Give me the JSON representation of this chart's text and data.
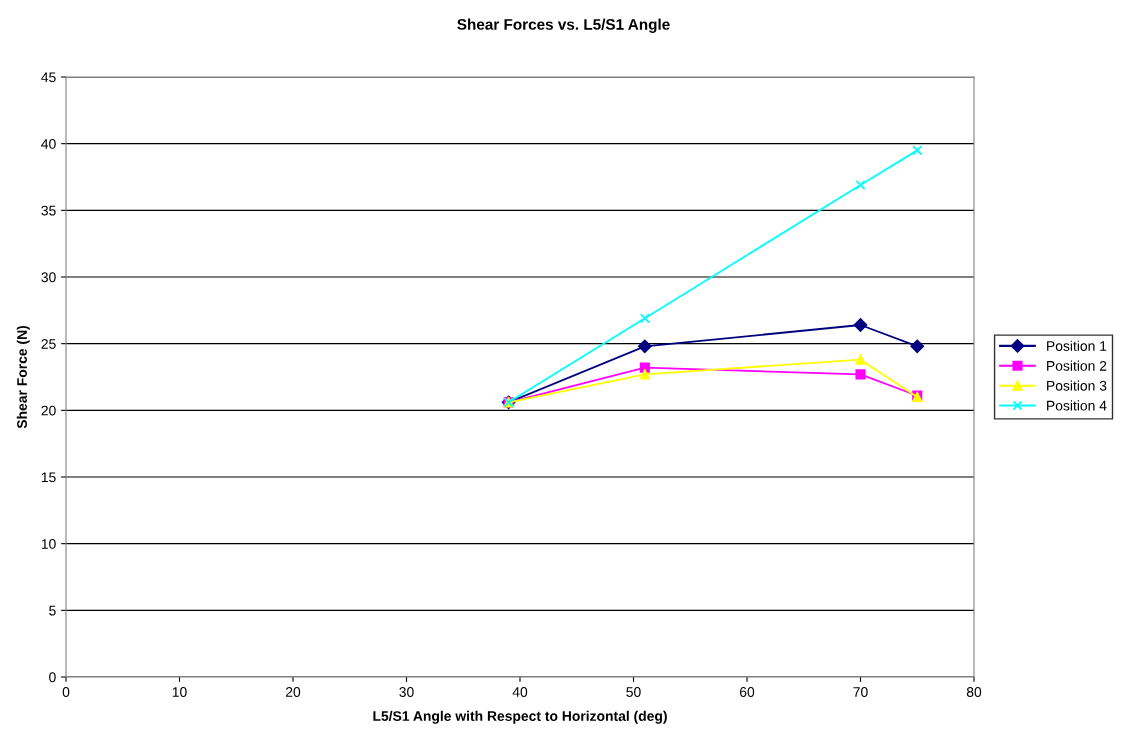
{
  "chart_data": {
    "type": "line",
    "title": "Shear Forces vs. L5/S1 Angle",
    "xlabel": "L5/S1 Angle with Respect to Horizontal (deg)",
    "ylabel": "Shear Force (N)",
    "x": [
      39,
      51,
      70,
      75
    ],
    "series": [
      {
        "name": "Position 1",
        "color": "#000080",
        "marker": "diamond",
        "values": [
          20.6,
          24.8,
          26.4,
          24.8
        ]
      },
      {
        "name": "Position 2",
        "color": "#ff00ff",
        "marker": "square",
        "values": [
          20.6,
          23.2,
          22.7,
          21.1
        ]
      },
      {
        "name": "Position 3",
        "color": "#ffff00",
        "marker": "triangle",
        "values": [
          20.6,
          22.7,
          23.8,
          21.0
        ]
      },
      {
        "name": "Position 4",
        "color": "#00ffff",
        "marker": "cross",
        "values": [
          20.6,
          26.9,
          36.9,
          39.5
        ]
      }
    ],
    "xlim": [
      0,
      80
    ],
    "xticks": [
      0,
      10,
      20,
      30,
      40,
      50,
      60,
      70,
      80
    ],
    "ylim": [
      0,
      45
    ],
    "yticks": [
      0,
      5,
      10,
      15,
      20,
      25,
      30,
      35,
      40,
      45
    ],
    "grid": "y",
    "legend": "right",
    "line_style": "solid"
  }
}
